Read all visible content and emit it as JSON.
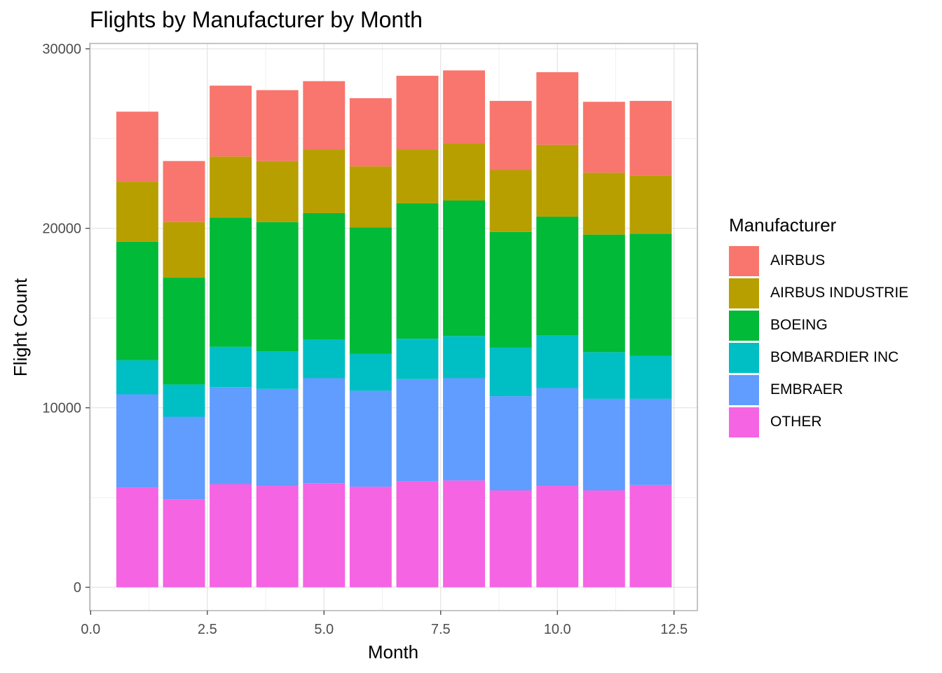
{
  "chart_data": {
    "type": "bar",
    "stacked": true,
    "title": "Flights by Manufacturer by Month",
    "xlabel": "Month",
    "ylabel": "Flight Count",
    "xlim": [
      0,
      12.5
    ],
    "ylim": [
      0,
      30000
    ],
    "x_ticks": [
      "0.0",
      "2.5",
      "5.0",
      "7.5",
      "10.0",
      "12.5"
    ],
    "y_ticks": [
      "0",
      "10000",
      "20000",
      "30000"
    ],
    "grid": true,
    "legend_title": "Manufacturer",
    "legend_position": "right",
    "x": [
      1,
      2,
      3,
      4,
      5,
      6,
      7,
      8,
      9,
      10,
      11,
      12
    ],
    "series": [
      {
        "name": "OTHER",
        "color": "#F564E3",
        "values": [
          5550,
          4900,
          5750,
          5650,
          5800,
          5600,
          5900,
          5950,
          5400,
          5650,
          5400,
          5700
        ]
      },
      {
        "name": "EMBRAER",
        "color": "#619CFF",
        "values": [
          5200,
          4600,
          5400,
          5400,
          5850,
          5350,
          5700,
          5700,
          5250,
          5450,
          5100,
          4800
        ]
      },
      {
        "name": "BOMBARDIER INC",
        "color": "#00BFC4",
        "values": [
          1900,
          1800,
          2250,
          2100,
          2150,
          2050,
          2250,
          2350,
          2700,
          2950,
          2600,
          2400
        ]
      },
      {
        "name": "BOEING",
        "color": "#00BA38",
        "values": [
          6600,
          5950,
          7200,
          7200,
          7050,
          7050,
          7550,
          7550,
          6450,
          6600,
          6550,
          6800
        ]
      },
      {
        "name": "AIRBUS INDUSTRIE",
        "color": "#B79F00",
        "values": [
          3350,
          3100,
          3400,
          3400,
          3550,
          3400,
          3000,
          3200,
          3450,
          4000,
          3450,
          3250
        ]
      },
      {
        "name": "AIRBUS",
        "color": "#F8766D",
        "values": [
          3900,
          3400,
          3950,
          3950,
          3800,
          3800,
          4100,
          4050,
          3850,
          4050,
          3950,
          4150
        ]
      }
    ]
  }
}
